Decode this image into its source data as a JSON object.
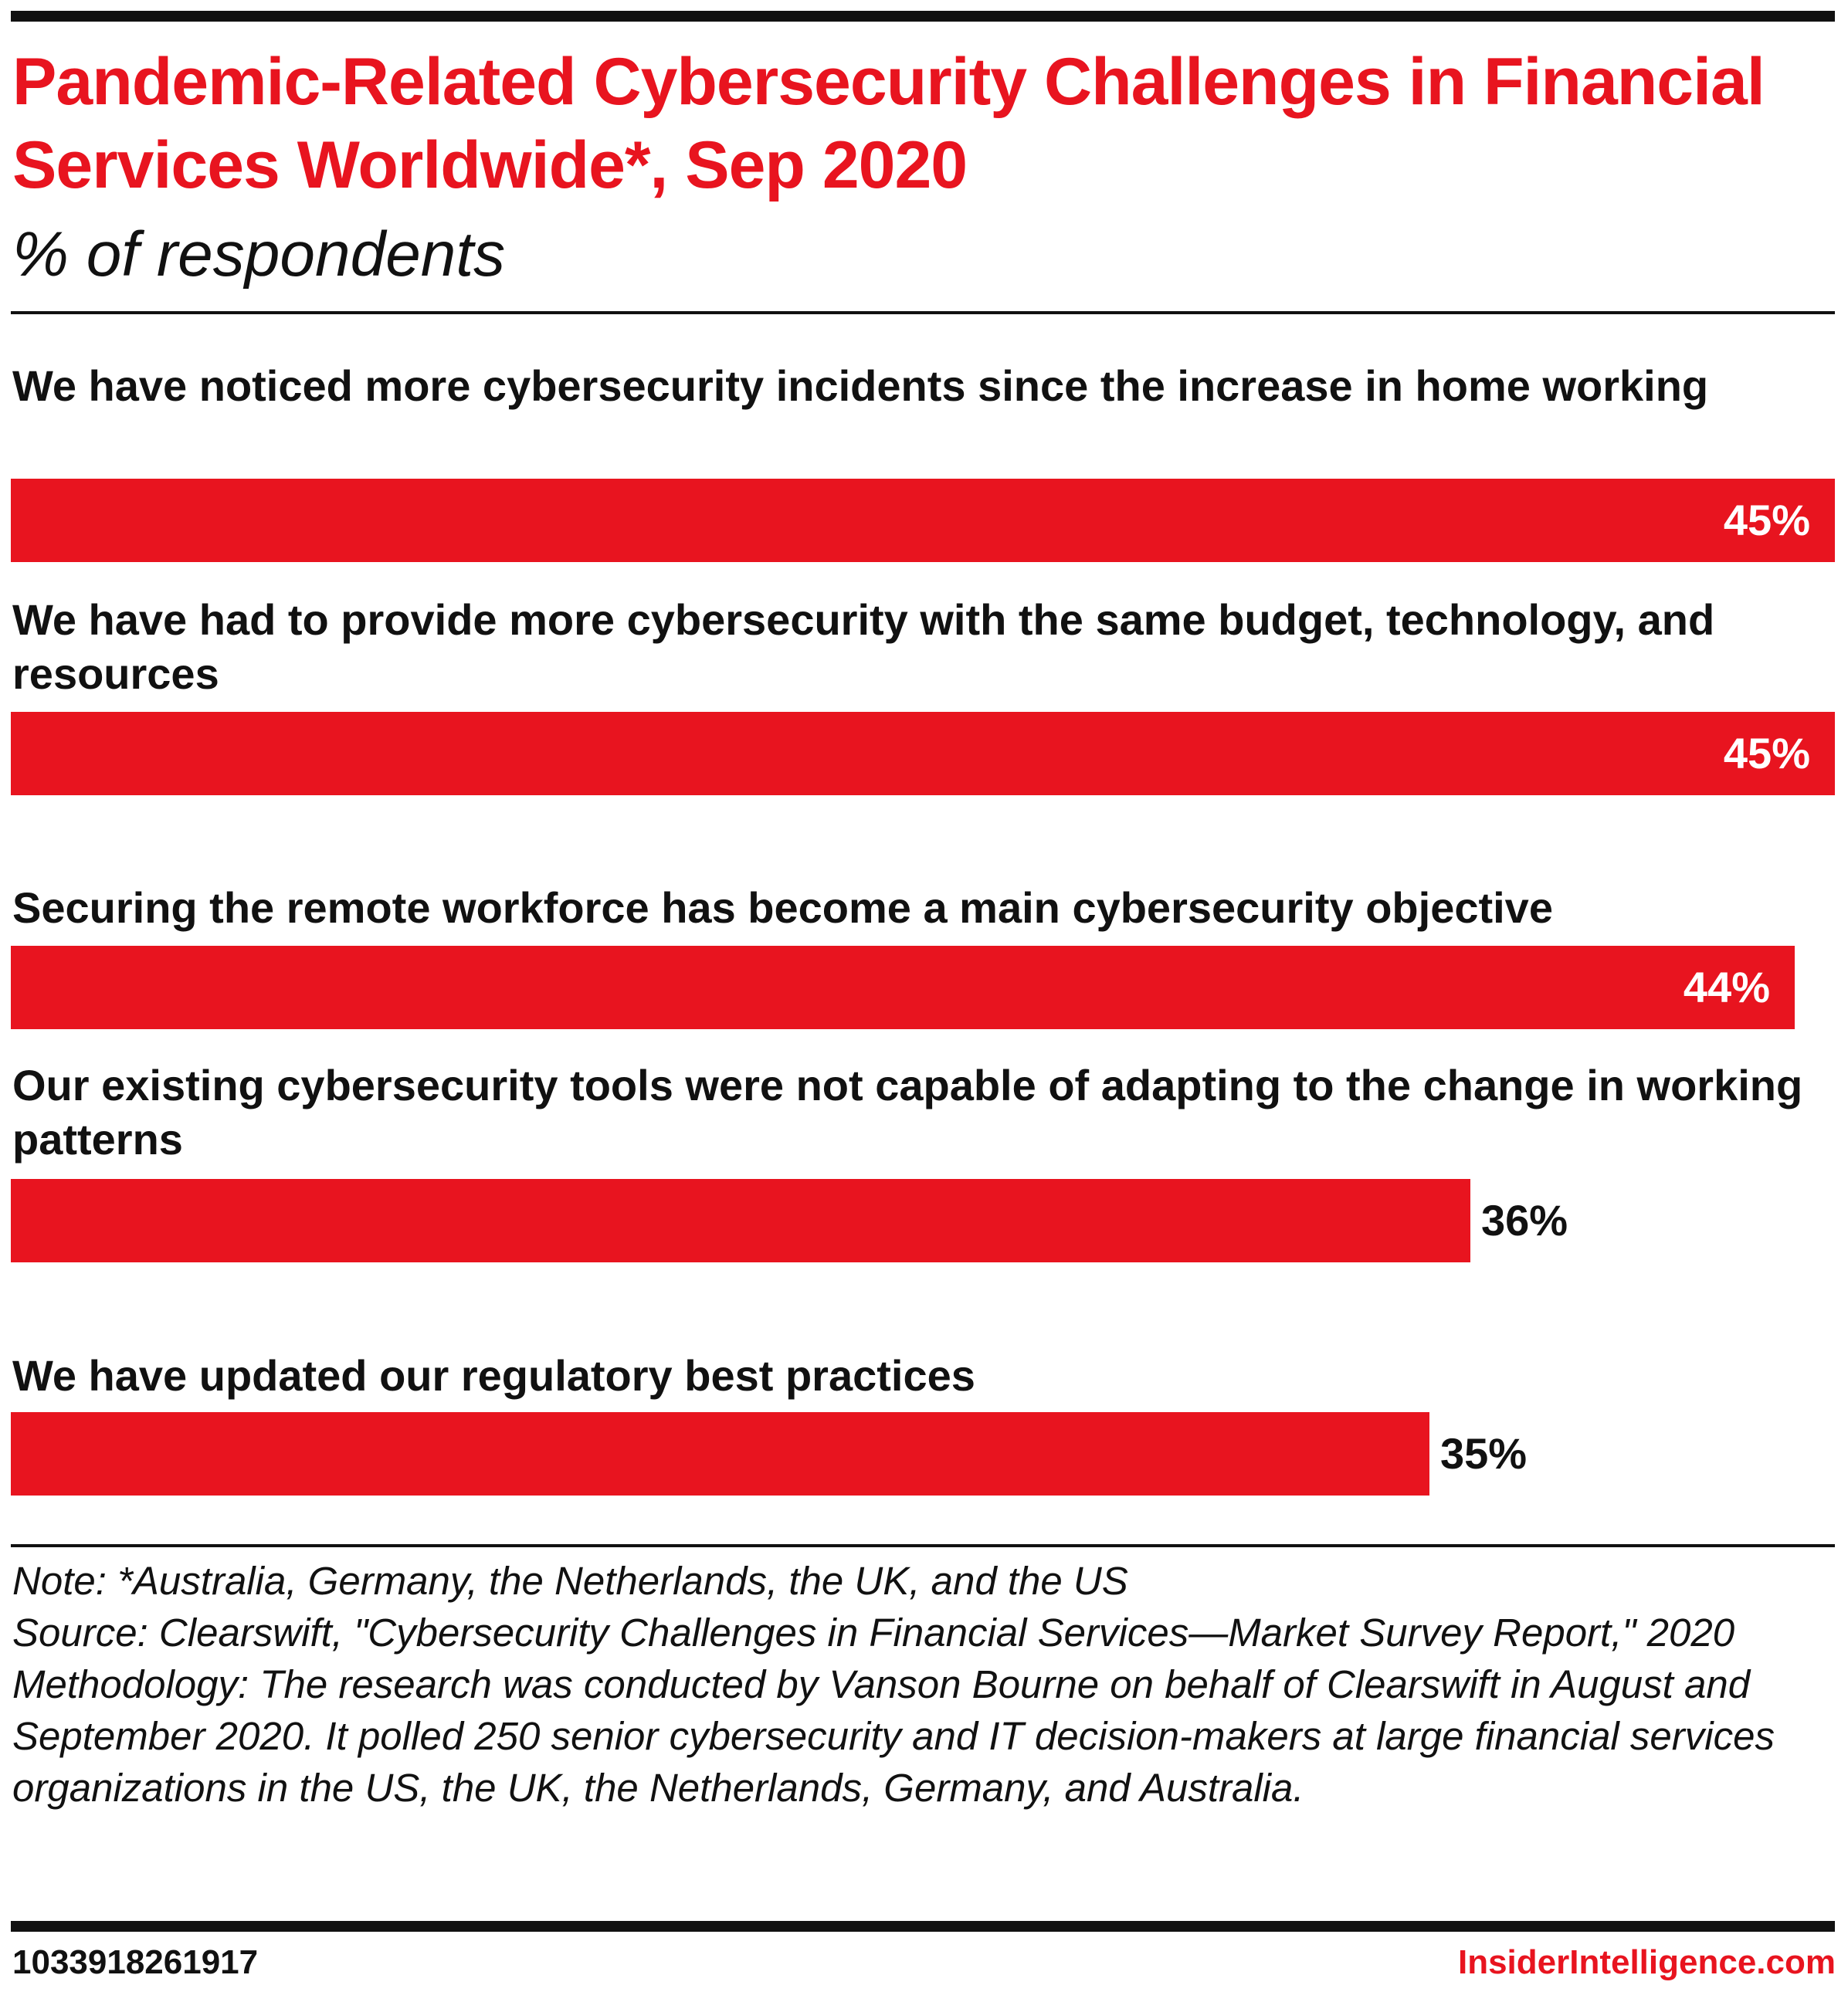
{
  "title": "Pandemic-Related Cybersecurity Challenges in Financial Services Worldwide*, Sep 2020",
  "subtitle": "% of respondents",
  "colors": {
    "accent": "#e8141f",
    "text": "#111111",
    "background": "#ffffff"
  },
  "chart_data": {
    "type": "bar",
    "orientation": "horizontal",
    "title": "Pandemic-Related Cybersecurity Challenges in Financial Services Worldwide*, Sep 2020",
    "subtitle": "% of respondents",
    "categories": [
      "We have noticed more cybersecurity incidents since the increase in home working",
      "We have had to provide more cybersecurity with the same budget, technology, and resources",
      "Securing the remote workforce has become a main cybersecurity objective",
      "Our existing cybersecurity tools were not capable of adapting to the change in working patterns",
      "We have updated our regulatory best practices"
    ],
    "values": [
      45,
      45,
      44,
      36,
      35
    ],
    "value_labels": [
      "45%",
      "45%",
      "44%",
      "36%",
      "35%"
    ],
    "unit": "%",
    "xlim": [
      0,
      45
    ],
    "grid": false,
    "legend": "none",
    "bar_color": "#e8141f"
  },
  "footnotes": {
    "note": "Note: *Australia, Germany, the Netherlands, the UK, and the US",
    "source": "Source: Clearswift, \"Cybersecurity Challenges in Financial Services—Market Survey Report,\" 2020",
    "methodology": "Methodology: The research was conducted by Vanson Bourne on behalf of Clearswift in August and September 2020. It polled 250 senior cybersecurity and IT decision-makers at large financial services organizations in the US, the UK, the Netherlands, Germany, and Australia."
  },
  "chart_id": "1033918261917",
  "brand": "InsiderIntelligence.com"
}
